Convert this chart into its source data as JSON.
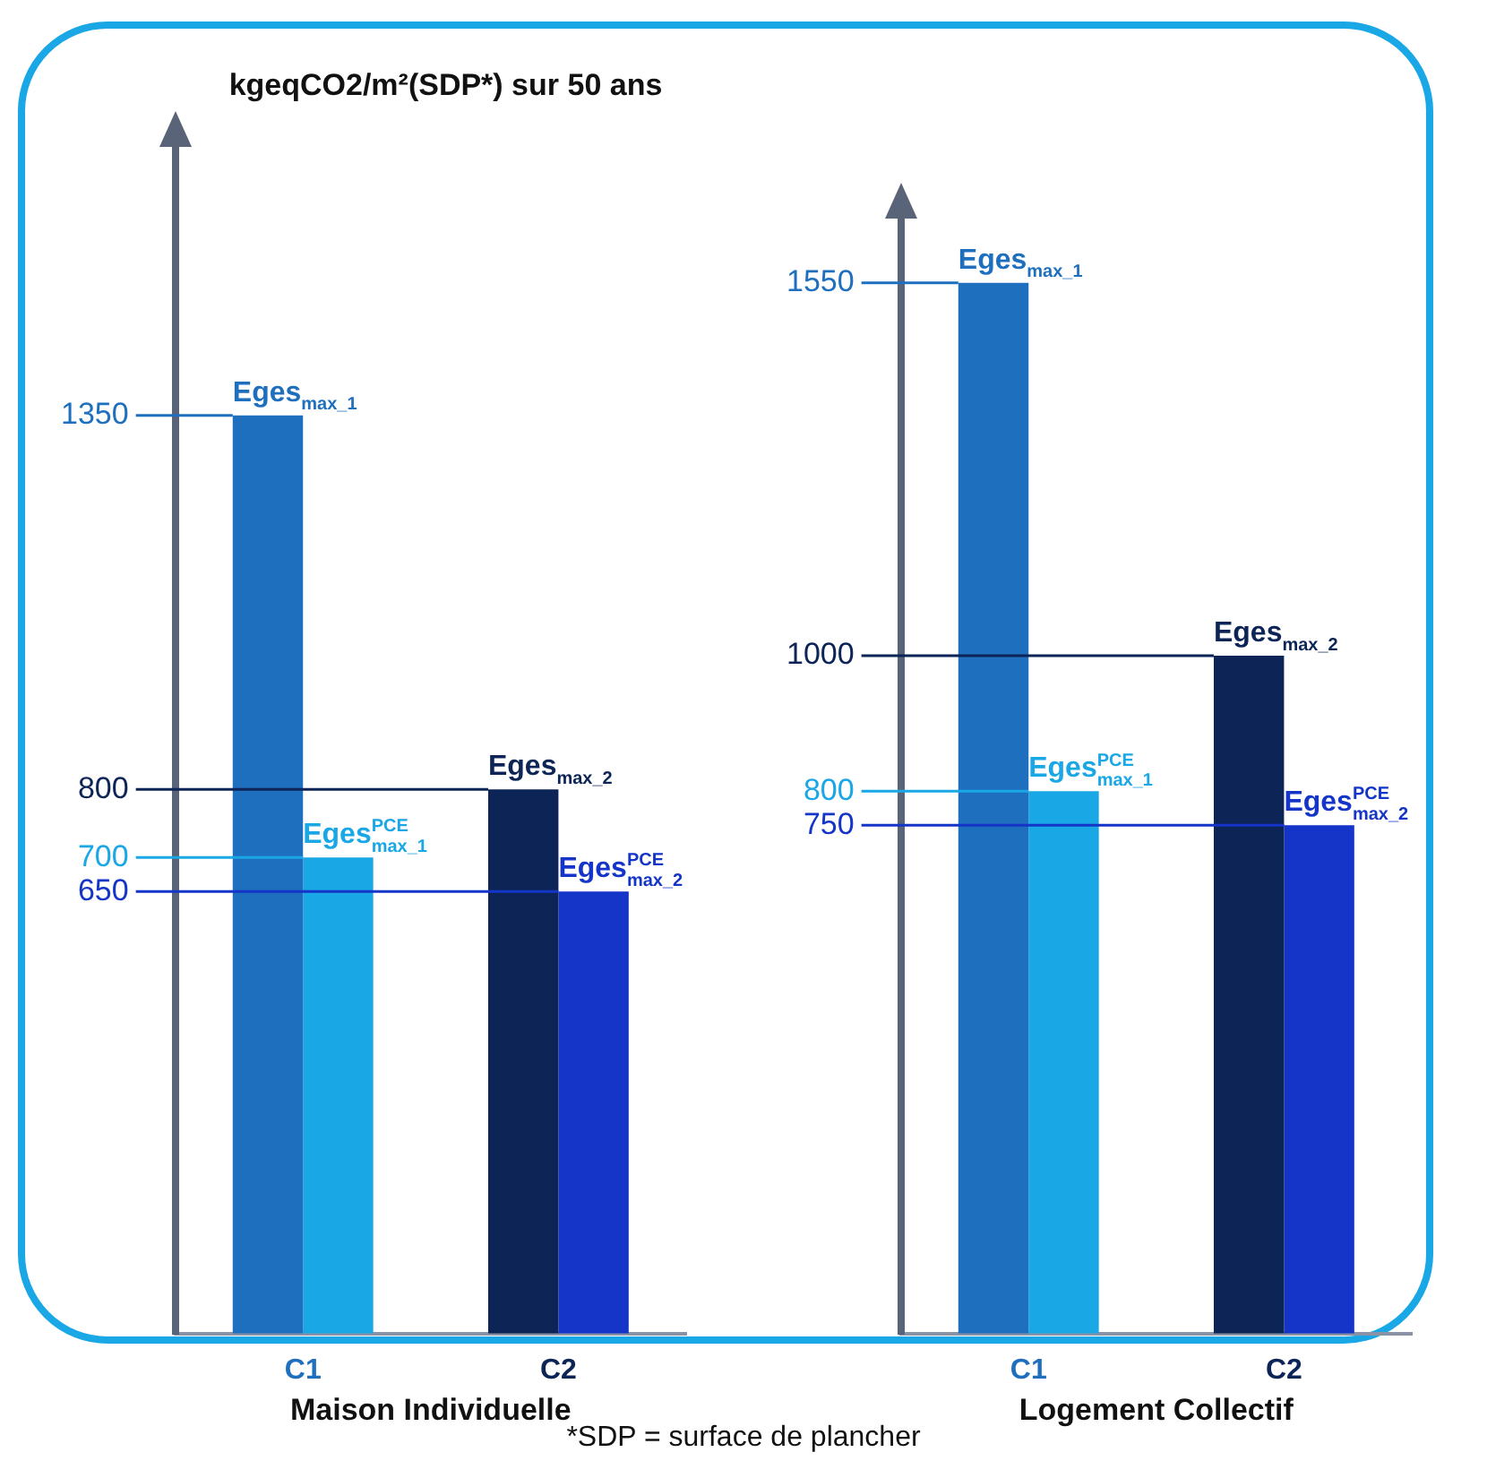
{
  "chart_data": [
    {
      "type": "bar",
      "ylabel": "kgeqCO2/m²(SDP*) sur 50 ans",
      "xlabel": "Maison Individuelle",
      "categories": [
        "C1",
        "C2"
      ],
      "ylim": [
        0,
        1750
      ],
      "yticks": [
        650,
        700,
        800,
        1350
      ],
      "grid": false,
      "legend": false,
      "series": [
        {
          "name": "Eges$_{max_1}$",
          "color": "#1f6fbf",
          "values": [
            1350,
            null
          ]
        },
        {
          "name": "Eges$^{PCE}$$_{max_1}$",
          "color": "#1aa7e6",
          "values": [
            700,
            null
          ]
        },
        {
          "name": "Eges$_{max_2}$",
          "color": "#0d2456",
          "values": [
            null,
            800
          ]
        },
        {
          "name": "Eges$^{PCE}$$_{max_2}$",
          "color": "#1534c8",
          "values": [
            null,
            650
          ]
        }
      ],
      "ref_lines": [
        {
          "axis": "y",
          "value": 1350,
          "color": "#1f6fbf"
        },
        {
          "axis": "y",
          "value": 700,
          "color": "#1aa7e6"
        },
        {
          "axis": "y",
          "value": 800,
          "color": "#0d2456"
        },
        {
          "axis": "y",
          "value": 650,
          "color": "#1534c8"
        }
      ],
      "annotations": [
        "*SDP = surface de plancher"
      ]
    },
    {
      "type": "bar",
      "xlabel": "Logement Collectif",
      "categories": [
        "C1",
        "C2"
      ],
      "ylim": [
        0,
        1650
      ],
      "yticks": [
        750,
        800,
        1000,
        1550
      ],
      "grid": false,
      "legend": false,
      "series": [
        {
          "name": "Eges$_{max_1}$",
          "color": "#1f6fbf",
          "values": [
            1550,
            null
          ]
        },
        {
          "name": "Eges$^{PCE}$$_{max_1}$",
          "color": "#1aa7e6",
          "values": [
            800,
            null
          ]
        },
        {
          "name": "Eges$_{max_2}$",
          "color": "#0d2456",
          "values": [
            null,
            1000
          ]
        },
        {
          "name": "Eges$^{PCE}$$_{max_2}$",
          "color": "#1534c8",
          "values": [
            null,
            750
          ]
        }
      ],
      "ref_lines": [
        {
          "axis": "y",
          "value": 1550,
          "color": "#1f6fbf"
        },
        {
          "axis": "y",
          "value": 800,
          "color": "#1aa7e6"
        },
        {
          "axis": "y",
          "value": 1000,
          "color": "#0d2456"
        },
        {
          "axis": "y",
          "value": 750,
          "color": "#1534c8"
        }
      ]
    }
  ]
}
